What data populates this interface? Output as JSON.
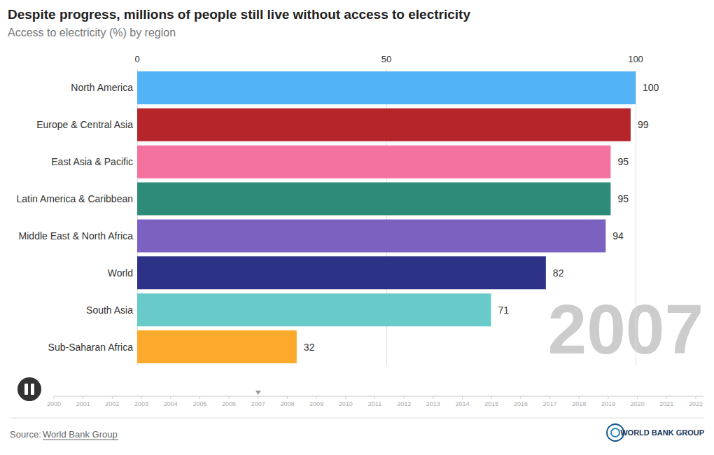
{
  "chart_data": {
    "type": "bar",
    "title": "Despite progress, millions of people still live without access to electricity",
    "subtitle": "Access to electricity (%) by region",
    "orientation": "horizontal",
    "categories": [
      "North America",
      "Europe & Central Asia",
      "East Asia & Pacific",
      "Latin America & Caribbean",
      "Middle East & North Africa",
      "World",
      "South Asia",
      "Sub-Saharan Africa"
    ],
    "values": [
      100,
      99,
      95,
      95,
      94,
      82,
      71,
      32
    ],
    "colors": [
      "#52b3f5",
      "#b5252a",
      "#f472a0",
      "#2e8b7a",
      "#7b62c0",
      "#2d3187",
      "#68cbc9",
      "#fda92b"
    ],
    "xlim": [
      0,
      100
    ],
    "xticks": [
      0,
      50,
      100
    ],
    "grid": true,
    "data_labels": true,
    "year": 2007,
    "timeline": [
      2000,
      2001,
      2002,
      2003,
      2004,
      2005,
      2006,
      2007,
      2008,
      2009,
      2010,
      2011,
      2012,
      2013,
      2014,
      2015,
      2016,
      2017,
      2018,
      2019,
      2020,
      2021,
      2022
    ],
    "source_label": "Source:",
    "source": "World Bank Group",
    "logo": "WORLD BANK GROUP"
  }
}
